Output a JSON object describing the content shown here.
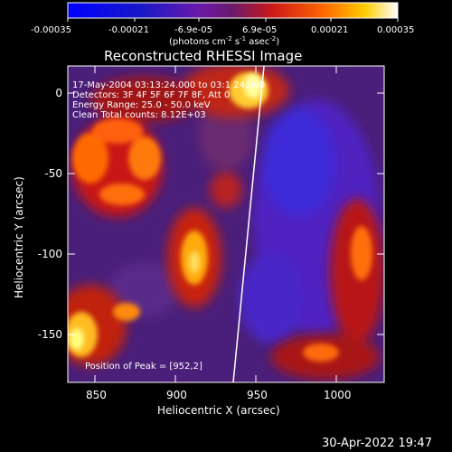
{
  "colorbar": {
    "ticks": [
      "-0.00035",
      "-0.00021",
      "-6.9e-05",
      "6.9e-05",
      "0.00021",
      "0.00035"
    ],
    "units_prefix": "(photons cm",
    "units_exp1": "-2",
    "units_mid": " s",
    "units_exp2": "-1",
    "units_suffix": " asec",
    "units_exp3": "-2",
    "units_close": ")"
  },
  "title": "Reconstructed RHESSI Image",
  "info": {
    "line1": "17-May-2004 03:13:24.000 to 03:1 24.000",
    "line2": "Detectors: 3F 4F 5F 6F 7F 8F, Att 0",
    "line3": "Energy Range: 25.0 - 50.0 keV",
    "line4": "Clean     Total counts: 8.12E+03"
  },
  "peak_label": "Position of Peak = [952,2]",
  "xaxis": {
    "label": "Heliocentric X (arcsec)",
    "ticks": [
      "850",
      "900",
      "950",
      "1000"
    ]
  },
  "yaxis": {
    "label": "Heliocentric Y (arcsec)",
    "ticks": [
      "0",
      "-50",
      "-100",
      "-150"
    ]
  },
  "timestamp": "30-Apr-2022 19:47",
  "colors": {
    "plot_bg": "#3a1a6a",
    "limb": "#ffffff"
  }
}
